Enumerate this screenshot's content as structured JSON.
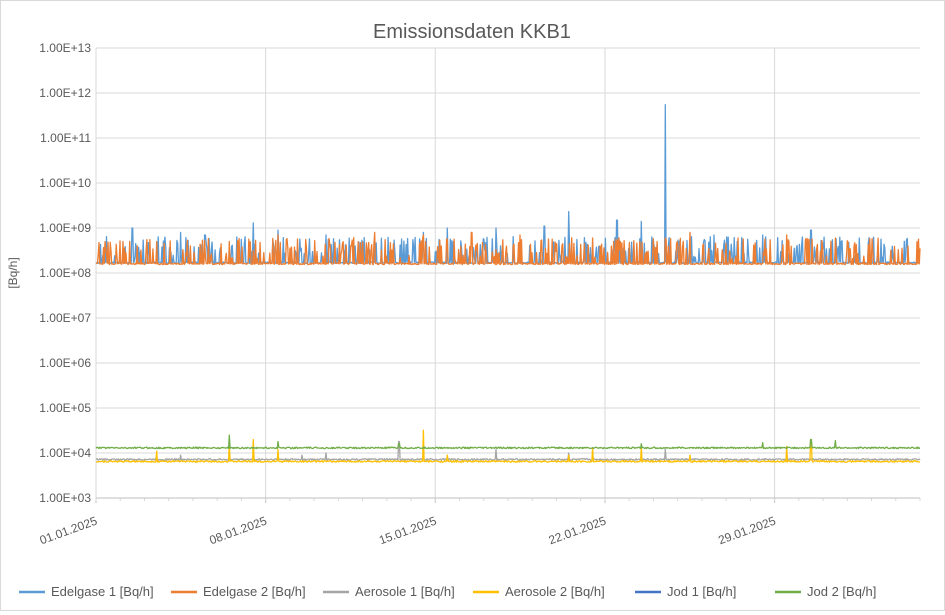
{
  "chart_data": {
    "type": "line",
    "title": "Emissionsdaten KKB1",
    "xlabel": "",
    "ylabel": "[Bq/h]",
    "yscale": "log",
    "ylim": [
      1000,
      10000000000000
    ],
    "y_tick_labels": [
      "1.00E+03",
      "1.00E+04",
      "1.00E+05",
      "1.00E+06",
      "1.00E+07",
      "1.00E+08",
      "1.00E+09",
      "1.00E+10",
      "1.00E+11",
      "1.00E+12",
      "1.00E+13"
    ],
    "xlim": [
      "2025-01-01",
      "2025-02-04"
    ],
    "x_tick_labels": [
      "01.01.2025",
      "08.01.2025",
      "15.01.2025",
      "22.01.2025",
      "29.01.2025"
    ],
    "grid": true,
    "legend_position": "bottom",
    "series": [
      {
        "name": "Edelgase 1 [Bq/h]",
        "color": "#5b9bd5",
        "baseline": 170000000,
        "spikes": [
          [
            "2025-01-02",
            1000000000
          ],
          [
            "2025-01-04",
            800000000
          ],
          [
            "2025-01-05",
            700000000
          ],
          [
            "2025-01-07",
            1300000000
          ],
          [
            "2025-01-08",
            900000000
          ],
          [
            "2025-01-10",
            700000000
          ],
          [
            "2025-01-12",
            600000000
          ],
          [
            "2025-01-14",
            800000000
          ],
          [
            "2025-01-15",
            1000000000
          ],
          [
            "2025-01-17",
            1000000000
          ],
          [
            "2025-01-19",
            1100000000
          ],
          [
            "2025-01-20",
            2300000000
          ],
          [
            "2025-01-22",
            1500000000
          ],
          [
            "2025-01-23",
            1400000000
          ],
          [
            "2025-01-24",
            550000000000
          ],
          [
            "2025-01-26",
            700000000
          ],
          [
            "2025-01-28",
            700000000
          ],
          [
            "2025-01-30",
            900000000
          ],
          [
            "2025-02-01",
            600000000
          ]
        ]
      },
      {
        "name": "Edelgase 2 [Bq/h]",
        "color": "#ed7d31",
        "baseline": 160000000,
        "spikes": [
          [
            "2025-01-03",
            500000000
          ],
          [
            "2025-01-06",
            500000000
          ],
          [
            "2025-01-08",
            700000000
          ],
          [
            "2025-01-11",
            400000000
          ],
          [
            "2025-01-12",
            800000000
          ],
          [
            "2025-01-14",
            700000000
          ],
          [
            "2025-01-16",
            800000000
          ],
          [
            "2025-01-18",
            700000000
          ],
          [
            "2025-01-21",
            600000000
          ],
          [
            "2025-01-24",
            600000000
          ],
          [
            "2025-01-25",
            800000000
          ],
          [
            "2025-01-27",
            600000000
          ],
          [
            "2025-01-29",
            700000000
          ],
          [
            "2025-01-31",
            600000000
          ],
          [
            "2025-02-03",
            400000000
          ]
        ]
      },
      {
        "name": "Aerosole 1 [Bq/h]",
        "color": "#a5a5a5",
        "baseline": 7200,
        "spikes": [
          [
            "2025-01-04",
            9000
          ],
          [
            "2025-01-09",
            9000
          ],
          [
            "2025-01-10",
            10000
          ],
          [
            "2025-01-13",
            18000
          ],
          [
            "2025-01-17",
            12000
          ],
          [
            "2025-01-20",
            10000
          ],
          [
            "2025-01-24",
            12000
          ],
          [
            "2025-01-29",
            10000
          ]
        ]
      },
      {
        "name": "Aerosole 2 [Bq/h]",
        "color": "#ffc000",
        "baseline": 6500,
        "spikes": [
          [
            "2025-01-03",
            11000
          ],
          [
            "2025-01-06",
            17000
          ],
          [
            "2025-01-07",
            20000
          ],
          [
            "2025-01-08",
            12000
          ],
          [
            "2025-01-14",
            32000
          ],
          [
            "2025-01-15",
            9000
          ],
          [
            "2025-01-20",
            9000
          ],
          [
            "2025-01-21",
            13000
          ],
          [
            "2025-01-23",
            14000
          ],
          [
            "2025-01-25",
            9000
          ],
          [
            "2025-01-29",
            14000
          ],
          [
            "2025-01-30",
            18000
          ]
        ]
      },
      {
        "name": "Jod 1 [Bq/h]",
        "color": "#4472c4",
        "baseline": null,
        "spikes": []
      },
      {
        "name": "Jod 2 [Bq/h]",
        "color": "#70ad47",
        "baseline": 13000,
        "spikes": [
          [
            "2025-01-06",
            25000
          ],
          [
            "2025-01-08",
            18000
          ],
          [
            "2025-01-13",
            16000
          ],
          [
            "2025-01-23",
            16000
          ],
          [
            "2025-01-28",
            17000
          ],
          [
            "2025-01-30",
            20000
          ],
          [
            "2025-01-31",
            19000
          ]
        ]
      }
    ]
  }
}
